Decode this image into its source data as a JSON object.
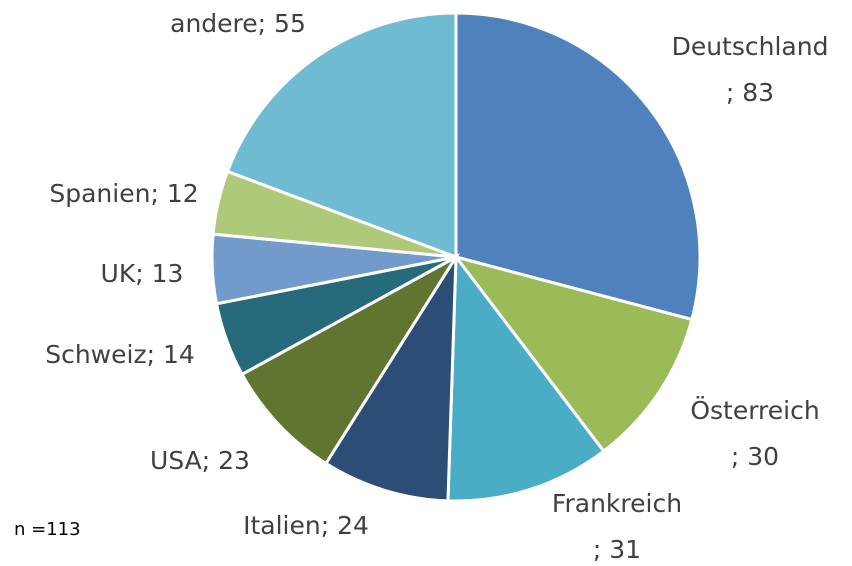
{
  "chart_data": {
    "type": "pie",
    "categories": [
      "Deutschland",
      "Österreich",
      "Frankreich",
      "Italien",
      "USA",
      "Schweiz",
      "UK",
      "Spanien",
      "andere"
    ],
    "values": [
      83,
      30,
      31,
      24,
      23,
      14,
      13,
      12,
      55
    ],
    "colors": [
      "#4f81bd",
      "#9bbb59",
      "#4bacc6",
      "#2c4d75",
      "#5f7530",
      "#276a7c",
      "#729aca",
      "#afc97a",
      "#6fbcd2"
    ],
    "label_separator": "; ",
    "note": "n =113"
  }
}
